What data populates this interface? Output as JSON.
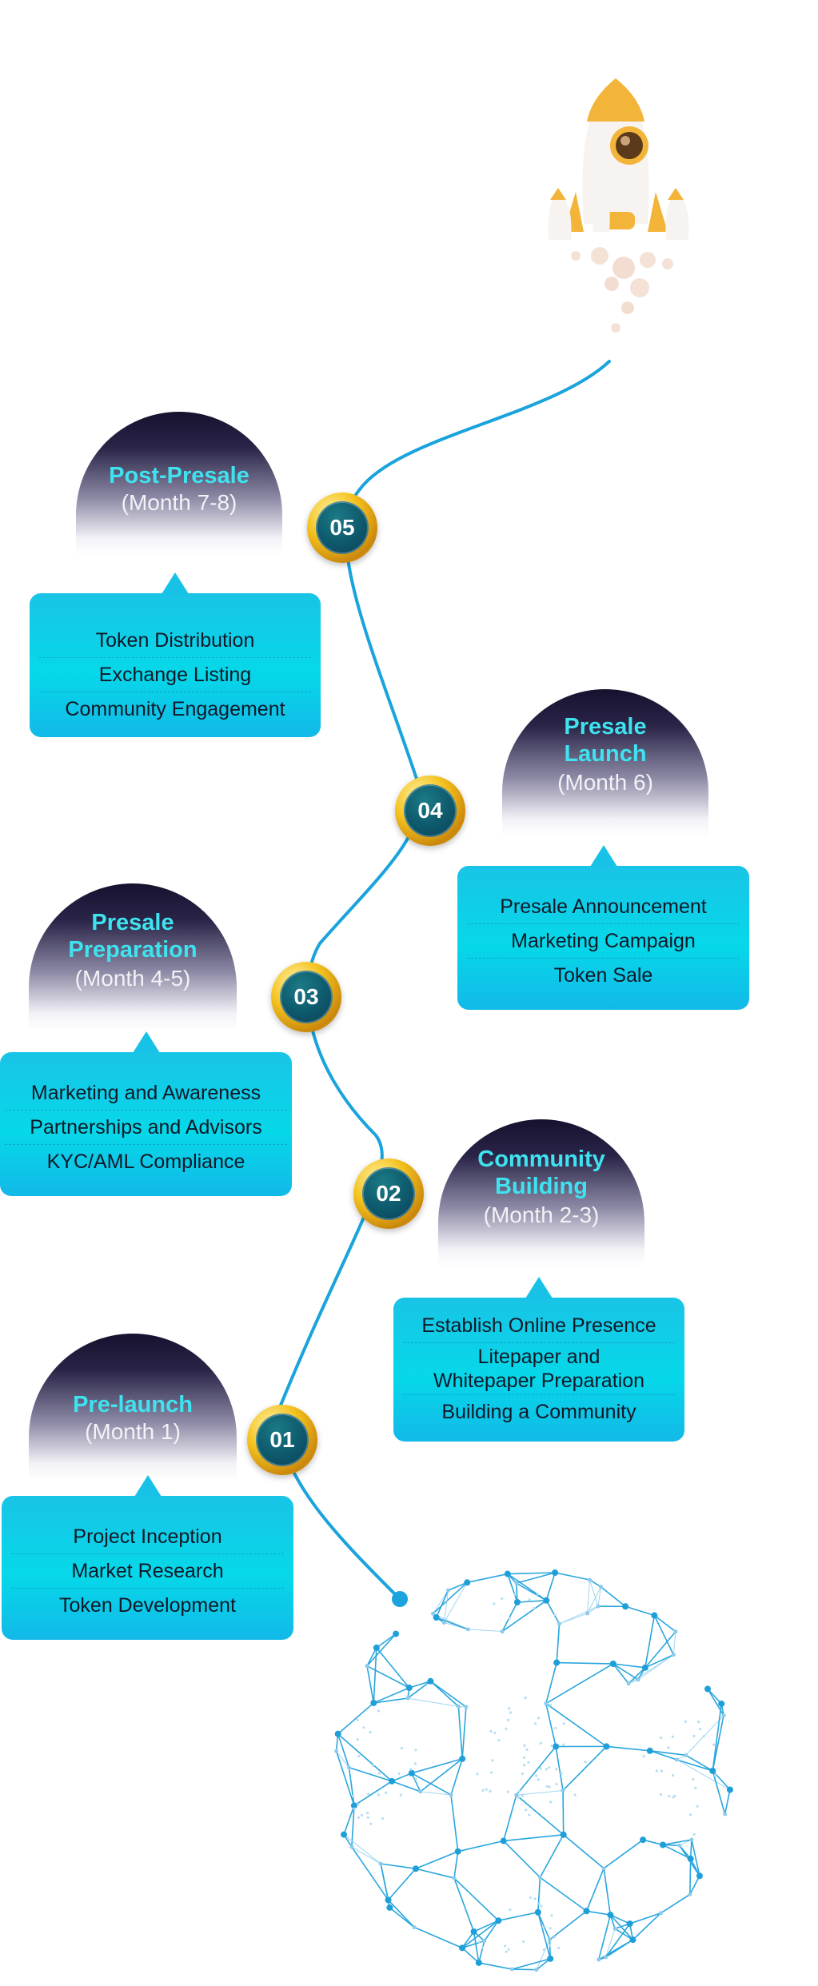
{
  "stages": [
    {
      "number": "01",
      "title": "Pre-launch",
      "period": "(Month 1)",
      "items": [
        "Project Inception",
        "Market Research",
        "Token Development"
      ]
    },
    {
      "number": "02",
      "title": "Community Building",
      "period": "(Month 2-3)",
      "items": [
        "Establish Online Presence",
        "Litepaper and Whitepaper Preparation",
        "Building a Community"
      ]
    },
    {
      "number": "03",
      "title": "Presale Preparation",
      "period": "(Month 4-5)",
      "items": [
        "Marketing and Awareness",
        "Partnerships and Advisors",
        "KYC/AML Compliance"
      ]
    },
    {
      "number": "04",
      "title": "Presale Launch",
      "period": "(Month 6)",
      "items": [
        "Presale Announcement",
        "Marketing Campaign",
        "Token Sale"
      ]
    },
    {
      "number": "05",
      "title": "Post-Presale",
      "period": "(Month 7-8)",
      "items": [
        "Token Distribution",
        "Exchange Listing",
        "Community Engagement"
      ]
    }
  ],
  "colors": {
    "accent_title": "#3fe3ef",
    "card": "#09cfe8",
    "path_line": "#1aa3dc",
    "badge_gold": "#f4c21e",
    "badge_core": "#0e5b6e",
    "dome_dark": "#15112e"
  },
  "decor": {
    "top_illustration": "rocket-icon",
    "bottom_illustration": "globe-network-icon"
  }
}
